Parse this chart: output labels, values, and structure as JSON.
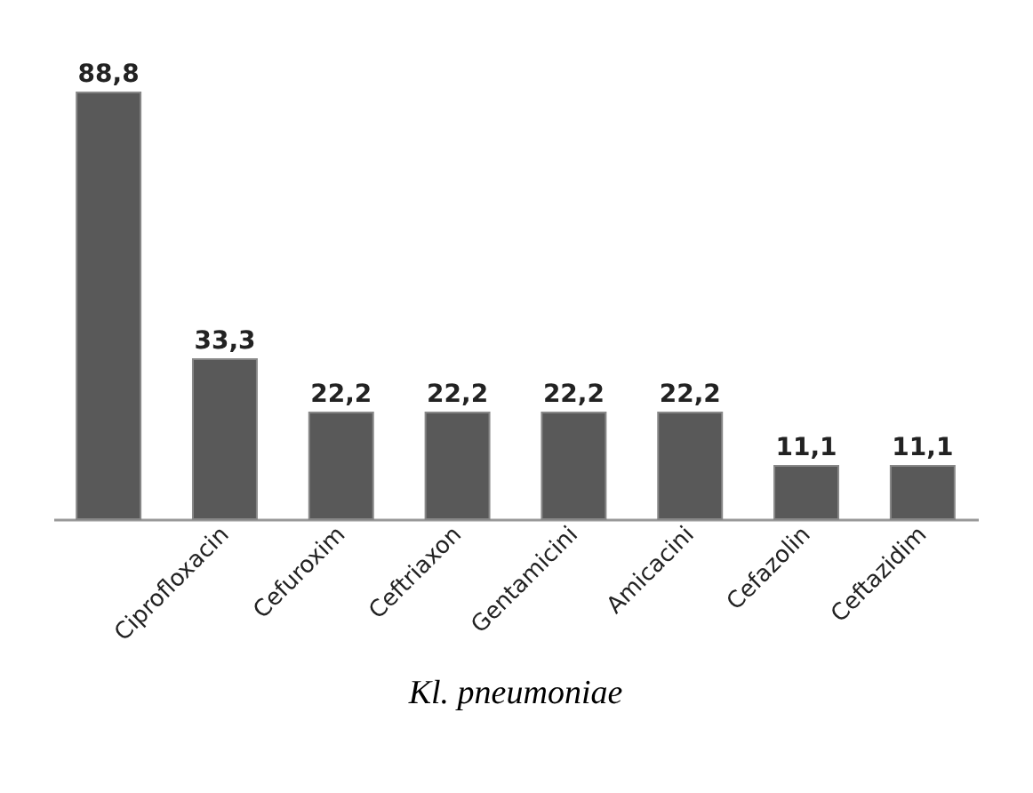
{
  "chart_data": {
    "type": "bar",
    "title": "Kl. pneumoniae",
    "categories": [
      null,
      "Ciprofloxacin",
      "Cefuroxim",
      "Ceftriaxon",
      "Gentamicini",
      "Amicacini",
      "Cefazolin",
      "Ceftazidim"
    ],
    "values": [
      88.8,
      33.3,
      22.2,
      22.2,
      22.2,
      22.2,
      11.1,
      11.1
    ],
    "value_labels": [
      "88,8",
      "33,3",
      "22,2",
      "22,2",
      "22,2",
      "22,2",
      "11,1",
      "11,1"
    ],
    "color": "#595959"
  }
}
